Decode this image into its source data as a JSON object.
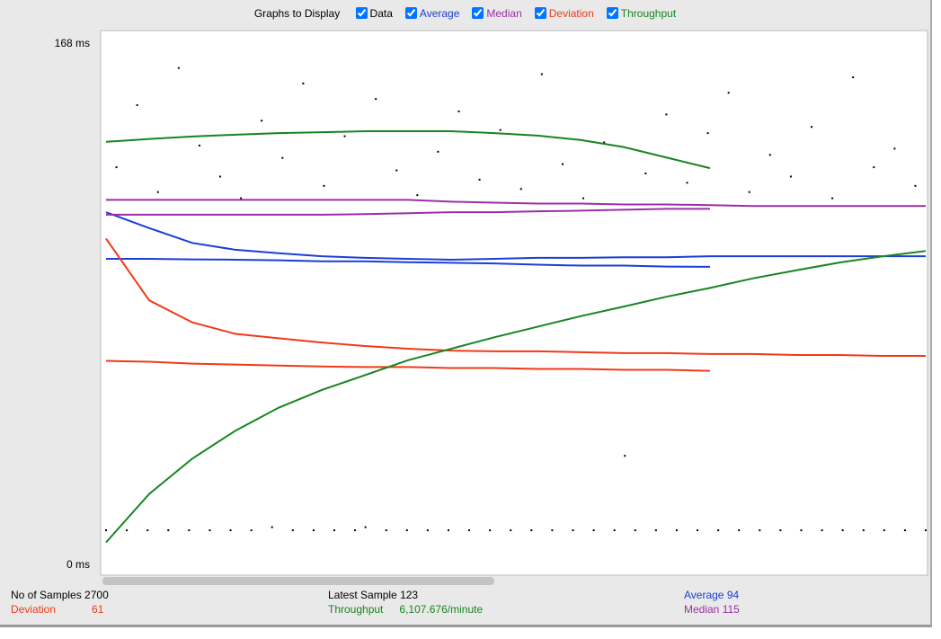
{
  "header": {
    "title": "Graphs to Display"
  },
  "graphs": [
    {
      "label": "Data",
      "color": "#000000",
      "checked": true,
      "type": "scatter",
      "lines": [
        [
          11,
          128,
          11,
          148,
          11,
          120,
          11,
          160,
          11,
          135,
          11,
          125,
          11,
          118,
          11,
          143,
          12,
          131,
          11,
          155,
          11,
          122,
          11,
          138,
          11,
          12,
          150,
          11,
          127,
          11,
          119,
          11,
          133,
          11,
          146,
          11,
          124,
          11,
          140,
          11,
          121,
          11,
          158,
          11,
          129,
          11,
          118,
          11,
          136,
          11,
          35,
          11,
          126,
          11,
          145,
          11,
          123,
          11,
          139,
          11,
          152,
          11,
          120,
          11,
          132,
          11,
          125,
          11,
          141,
          11,
          118,
          11,
          157,
          11,
          128,
          11,
          134,
          11,
          122,
          11
        ]
      ]
    },
    {
      "label": "Average",
      "color": "#1a3fd6",
      "checked": true,
      "type": "line",
      "lines": [
        [
          113.5,
          108.4,
          103.6,
          101.4,
          100.3,
          99.3,
          98.8,
          98.5,
          98.2,
          98.5,
          98.8,
          98.8,
          99.0,
          99.0,
          99.3,
          99.3,
          99.3,
          99.3,
          99.3,
          99.3
        ],
        [
          98.5,
          98.5,
          98.3,
          98.2,
          98.0,
          97.7,
          97.7,
          97.4,
          97.2,
          97.0,
          96.6,
          96.3,
          96.3,
          96.0,
          95.9,
          null,
          null,
          null,
          null,
          null
        ]
      ]
    },
    {
      "label": "Median",
      "color": "#9b2fa6",
      "checked": true,
      "type": "line",
      "lines": [
        [
          117.5,
          117.5,
          117.5,
          117.5,
          117.5,
          117.5,
          117.5,
          117.5,
          116.9,
          116.6,
          116.3,
          116.3,
          116.0,
          116.0,
          115.8,
          115.5,
          115.5,
          115.5,
          115.5,
          115.5
        ],
        [
          112.7,
          112.7,
          112.7,
          112.7,
          112.7,
          112.7,
          112.9,
          113.2,
          113.5,
          113.5,
          113.8,
          114.0,
          114.3,
          114.6,
          114.6,
          null,
          null,
          null,
          null,
          null
        ]
      ]
    },
    {
      "label": "Deviation",
      "color": "#f03a17",
      "checked": true,
      "type": "line",
      "lines": [
        [
          105.0,
          85.1,
          78.0,
          74.3,
          72.9,
          71.5,
          70.4,
          69.5,
          68.9,
          68.7,
          68.7,
          68.4,
          68.1,
          68.1,
          67.8,
          67.8,
          67.5,
          67.5,
          67.2,
          67.2
        ],
        [
          65.6,
          65.3,
          64.7,
          64.4,
          64.1,
          63.8,
          63.6,
          63.6,
          63.3,
          63.3,
          63.0,
          63.0,
          62.7,
          62.7,
          62.4,
          null,
          null,
          null,
          null,
          null
        ]
      ]
    },
    {
      "label": "Throughput",
      "color": "#17851f",
      "checked": true,
      "type": "line",
      "lines": [
        [
          7.1,
          22.7,
          34.1,
          43.1,
          50.5,
          56.2,
          61.0,
          65.8,
          69.5,
          73.2,
          76.6,
          80.0,
          83.1,
          86.3,
          89.1,
          92.2,
          94.8,
          97.3,
          99.3,
          101.0
        ],
        [
          136.2,
          137.1,
          137.9,
          138.5,
          139.0,
          139.3,
          139.6,
          139.6,
          139.6,
          139.0,
          138.2,
          136.8,
          134.5,
          131.1,
          127.7,
          null,
          null,
          null,
          null,
          null
        ]
      ]
    }
  ],
  "ylim": [
    0,
    168
  ],
  "yticks": [
    {
      "value": 168,
      "label": "168 ms"
    },
    {
      "value": 0,
      "label": "0 ms"
    }
  ],
  "summary": {
    "samples": {
      "label": "No of Samples",
      "value": 2700
    },
    "latest": {
      "label": "Latest Sample",
      "value": 123
    },
    "average": {
      "label": "Average",
      "value": 94
    },
    "deviation": {
      "label": "Deviation",
      "value": 61
    },
    "throughput": {
      "label": "Throughput",
      "value": "6,107.676/minute"
    },
    "median": {
      "label": "Median",
      "value": 115
    }
  }
}
